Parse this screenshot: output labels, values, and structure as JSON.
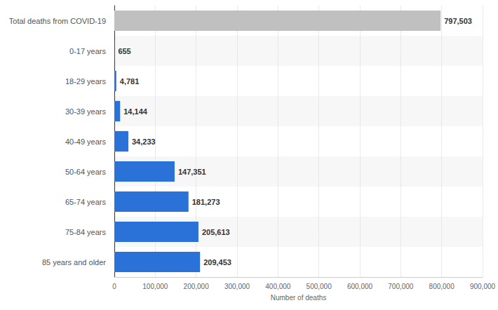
{
  "chart_data": {
    "type": "bar",
    "orientation": "horizontal",
    "categories": [
      "Total deaths from COVID-19",
      "0-17 years",
      "18-29 years",
      "30-39 years",
      "40-49 years",
      "50-64 years",
      "65-74 years",
      "75-84 years",
      "85 years and older"
    ],
    "values": [
      797503,
      655,
      4781,
      14144,
      34233,
      147351,
      181273,
      205613,
      209453
    ],
    "value_labels": [
      "797,503",
      "655",
      "4,781",
      "14,144",
      "34,233",
      "147,351",
      "181,273",
      "205,613",
      "209,453"
    ],
    "colors": [
      "#c0c0c0",
      "#2a72d8",
      "#2a72d8",
      "#2a72d8",
      "#2a72d8",
      "#2a72d8",
      "#2a72d8",
      "#2a72d8",
      "#2a72d8"
    ],
    "xlabel": "Number of deaths",
    "xlim": [
      0,
      900000
    ],
    "xticks": [
      0,
      {
        "value": 100000,
        "label": "100,000"
      },
      {
        "value": 200000,
        "label": "200,000"
      },
      {
        "value": 300000,
        "label": "300,000"
      },
      {
        "value": 400000,
        "label": "400,000"
      },
      {
        "value": 500000,
        "label": "500,000"
      },
      {
        "value": 600000,
        "label": "600,000"
      },
      {
        "value": 700000,
        "label": "700,000"
      },
      {
        "value": 800000,
        "label": "800,000"
      },
      {
        "value": 900000,
        "label": "900,000"
      }
    ],
    "grid": true,
    "data_labels": true
  }
}
